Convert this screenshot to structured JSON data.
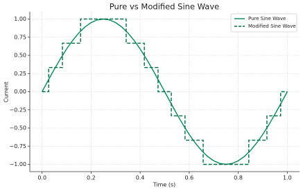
{
  "chart_data": {
    "type": "line",
    "title": "Pure vs Modified Sine Wave",
    "xlabel": "Time (s)",
    "ylabel": "Current",
    "xlim": [
      -0.05,
      1.05
    ],
    "ylim": [
      -1.1,
      1.1
    ],
    "xticks": [
      {
        "value": 0,
        "label": "0.0"
      },
      0.2,
      0.4,
      0.6,
      0.8,
      {
        "value": 1,
        "label": "1.0"
      }
    ],
    "yticks": [
      {
        "value": -1,
        "label": "−1.00"
      },
      {
        "value": -0.75,
        "label": "−0.75"
      },
      {
        "value": -0.5,
        "label": "−0.50"
      },
      {
        "value": -0.25,
        "label": "−0.25"
      },
      {
        "value": 0,
        "label": "0.00"
      },
      {
        "value": 0.25,
        "label": "0.25"
      },
      {
        "value": 0.5,
        "label": "0.50"
      },
      {
        "value": 0.75,
        "label": "0.75"
      },
      {
        "value": 1,
        "label": "1.00"
      }
    ],
    "grid": true,
    "legend": "upper right",
    "series": [
      {
        "name": "Pure Sine Wave",
        "color": "#00875a",
        "style": "solid",
        "x": [
          0,
          0.025,
          0.05,
          0.075,
          0.1,
          0.125,
          0.15,
          0.175,
          0.2,
          0.225,
          0.25,
          0.275,
          0.3,
          0.325,
          0.35,
          0.375,
          0.4,
          0.425,
          0.45,
          0.475,
          0.5,
          0.525,
          0.55,
          0.575,
          0.6,
          0.625,
          0.65,
          0.675,
          0.7,
          0.725,
          0.75,
          0.775,
          0.8,
          0.825,
          0.85,
          0.875,
          0.9,
          0.925,
          0.95,
          0.975,
          1
        ],
        "values": [
          0,
          0.156,
          0.309,
          0.454,
          0.588,
          0.707,
          0.809,
          0.891,
          0.951,
          0.988,
          1,
          0.988,
          0.951,
          0.891,
          0.809,
          0.707,
          0.588,
          0.454,
          0.309,
          0.156,
          0,
          -0.156,
          -0.309,
          -0.454,
          -0.588,
          -0.707,
          -0.809,
          -0.891,
          -0.951,
          -0.988,
          -1,
          -0.988,
          -0.951,
          -0.891,
          -0.809,
          -0.707,
          -0.588,
          -0.454,
          -0.309,
          -0.156,
          0
        ]
      },
      {
        "name": "Modified Sine Wave",
        "color": "#006b4a",
        "style": "dashed",
        "x": [
          0,
          0.027,
          0.027,
          0.083,
          0.083,
          0.157,
          0.157,
          0.343,
          0.343,
          0.417,
          0.417,
          0.473,
          0.473,
          0.527,
          0.527,
          0.583,
          0.583,
          0.657,
          0.657,
          0.843,
          0.843,
          0.917,
          0.917,
          0.973,
          0.973,
          1
        ],
        "values": [
          0,
          0,
          0.333,
          0.333,
          0.667,
          0.667,
          1,
          1,
          0.667,
          0.667,
          0.333,
          0.333,
          0,
          0,
          -0.333,
          -0.333,
          -0.667,
          -0.667,
          -1,
          -1,
          -0.667,
          -0.667,
          -0.333,
          -0.333,
          0,
          0
        ]
      }
    ]
  }
}
